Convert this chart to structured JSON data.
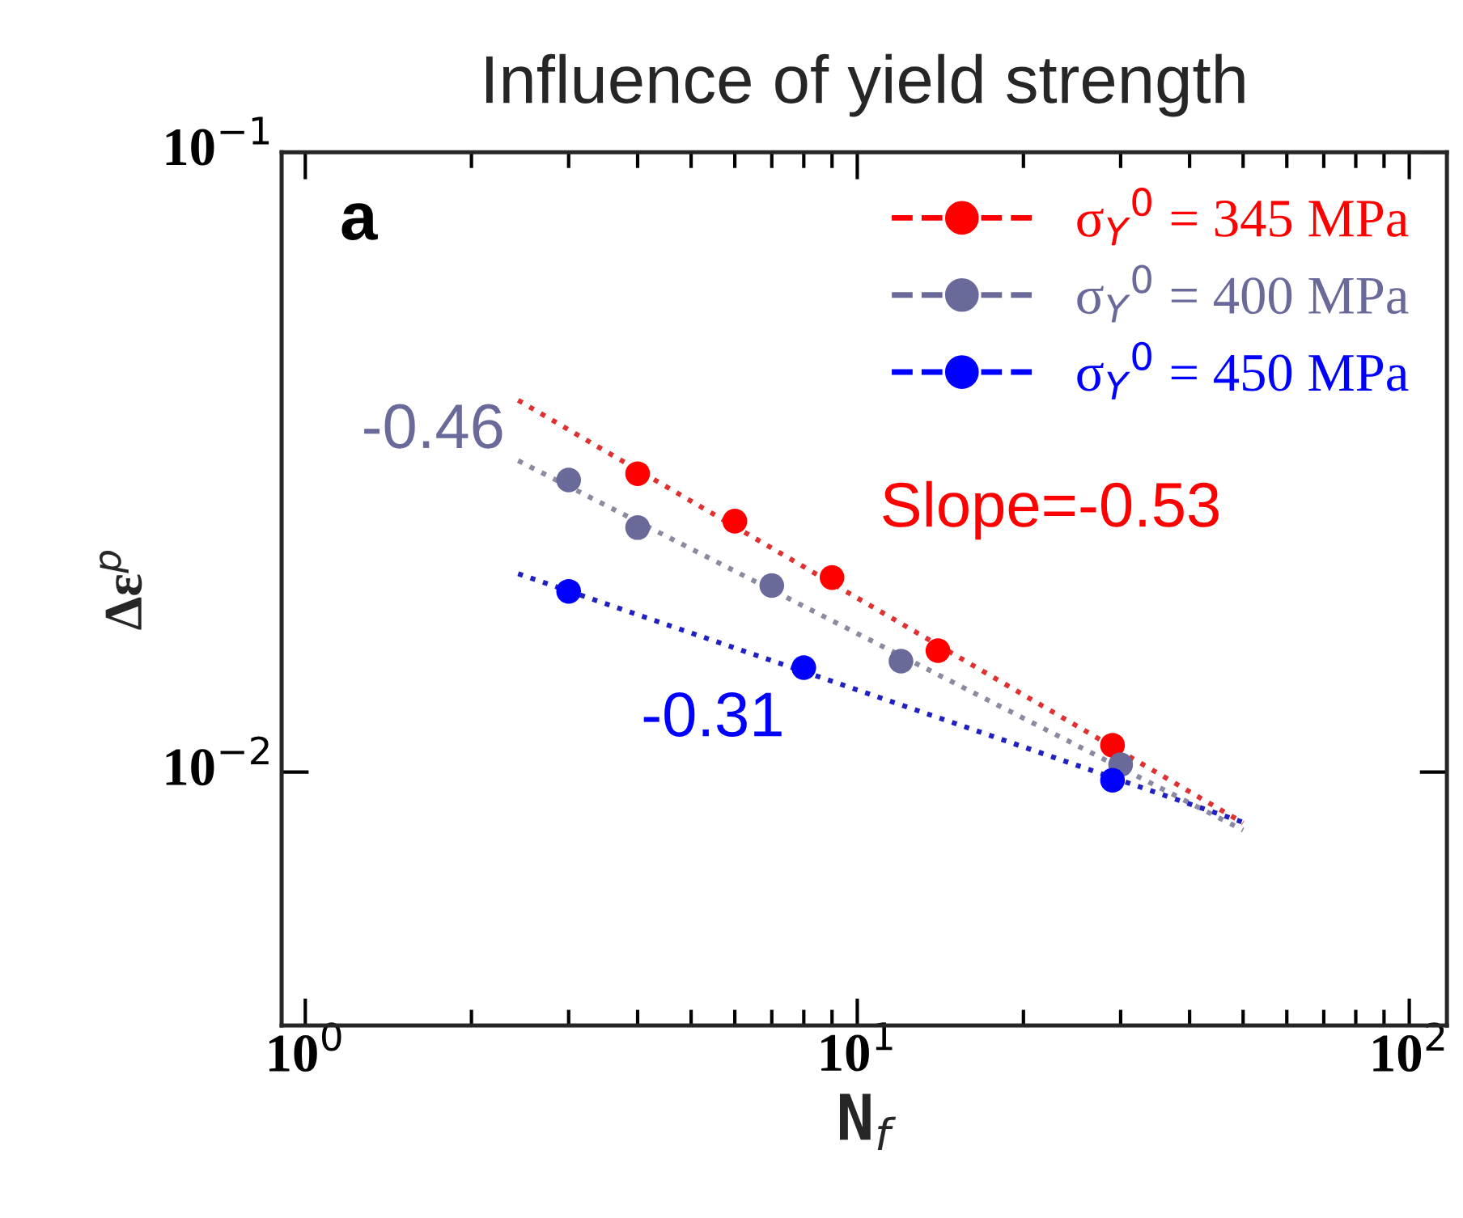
{
  "chart_data": {
    "type": "scatter",
    "title": "Influence of yield strength",
    "xlabel": "N$_{f}$",
    "ylabel": "Δε$^{p}$",
    "log": "xy",
    "grid": false,
    "legend": "top right",
    "marker": "circle",
    "xlim": [
      0.906,
      117
    ],
    "ylim": [
      0.0039,
      0.1
    ],
    "xticks": [
      {
        "value": 1,
        "label": "10$^{0}$"
      },
      {
        "value": 10,
        "label": "10$^{1}$"
      },
      {
        "value": 100,
        "label": "10$^{2}$"
      }
    ],
    "yticks": [
      {
        "value": 0.01,
        "label": "10$^{−2}$"
      },
      {
        "value": 0.1,
        "label": "10$^{−1}$"
      }
    ],
    "series": [
      {
        "name": "σ$_{Y}$$^{0}$ = 345 MPa",
        "color": "#ff0000",
        "line_style": "dashed",
        "x": [
          4,
          6,
          9,
          14,
          29
        ],
        "values": [
          0.0303,
          0.0254,
          0.0206,
          0.0157,
          0.01105
        ]
      },
      {
        "name": "σ$_{Y}$$^{0}$ = 400 MPa",
        "color": "#6a6a9a",
        "line_style": "dashed",
        "x": [
          3,
          4,
          7,
          12,
          30
        ],
        "values": [
          0.0296,
          0.0248,
          0.02,
          0.0151,
          0.01028
        ]
      },
      {
        "name": "σ$_{Y}$$^{0}$ = 450 MPa",
        "color": "#0000ff",
        "line_style": "dashed",
        "x": [
          3,
          8,
          29
        ],
        "values": [
          0.01957,
          0.01474,
          0.0097
        ]
      },
      {
        "type": "line",
        "marker": "none",
        "color": "#e03030",
        "line_style": "dotted",
        "x": [
          2.43,
          50
        ],
        "values": [
          0.0398,
          0.00828
        ]
      },
      {
        "type": "line",
        "marker": "none",
        "color": "#8a8aa0",
        "line_style": "dotted",
        "x": [
          2.43,
          50
        ],
        "values": [
          0.0318,
          0.00806
        ]
      },
      {
        "type": "line",
        "marker": "none",
        "color": "#2020c0",
        "line_style": "dotted",
        "x": [
          2.43,
          50
        ],
        "values": [
          0.0209,
          0.0083
        ]
      }
    ],
    "annotations": [
      "a",
      "-0.46",
      "Slope=-0.53",
      "-0.31"
    ]
  }
}
